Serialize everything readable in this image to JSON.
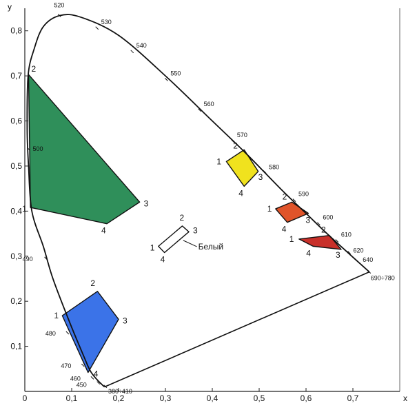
{
  "chart_data": {
    "type": "diagram",
    "xlabel": "x",
    "ylabel": "y",
    "xlim": [
      0,
      0.8
    ],
    "ylim": [
      0,
      0.85
    ],
    "x_ticks": [
      {
        "v": 0,
        "label": "0"
      },
      {
        "v": 0.1,
        "label": "0,1"
      },
      {
        "v": 0.2,
        "label": "0,2"
      },
      {
        "v": 0.3,
        "label": "0,3"
      },
      {
        "v": 0.4,
        "label": "0,4"
      },
      {
        "v": 0.5,
        "label": "0,5"
      },
      {
        "v": 0.6,
        "label": "0,6"
      },
      {
        "v": 0.7,
        "label": "0,7"
      }
    ],
    "y_ticks": [
      {
        "v": 0.1,
        "label": "0,1"
      },
      {
        "v": 0.2,
        "label": "0,2"
      },
      {
        "v": 0.3,
        "label": "0,3"
      },
      {
        "v": 0.4,
        "label": "0,4"
      },
      {
        "v": 0.5,
        "label": "0,5"
      },
      {
        "v": 0.6,
        "label": "0,6"
      },
      {
        "v": 0.7,
        "label": "0,7"
      },
      {
        "v": 0.8,
        "label": "0,8"
      }
    ],
    "locus": [
      [
        0.17,
        0.01
      ],
      [
        0.155,
        0.025
      ],
      [
        0.14,
        0.045
      ],
      [
        0.125,
        0.08
      ],
      [
        0.095,
        0.155
      ],
      [
        0.06,
        0.25
      ],
      [
        0.04,
        0.32
      ],
      [
        0.015,
        0.4
      ],
      [
        0.008,
        0.5
      ],
      [
        0.005,
        0.58
      ],
      [
        0.007,
        0.7
      ],
      [
        0.02,
        0.76
      ],
      [
        0.04,
        0.81
      ],
      [
        0.075,
        0.834
      ],
      [
        0.12,
        0.83
      ],
      [
        0.2,
        0.79
      ],
      [
        0.3,
        0.7
      ],
      [
        0.4,
        0.6
      ],
      [
        0.47,
        0.53
      ],
      [
        0.55,
        0.445
      ],
      [
        0.6,
        0.395
      ],
      [
        0.65,
        0.345
      ],
      [
        0.735,
        0.265
      ]
    ],
    "purple_line": [
      [
        0.735,
        0.265
      ],
      [
        0.17,
        0.01
      ]
    ],
    "wavelengths": [
      {
        "label": "520",
        "x": 0.074,
        "y": 0.834,
        "dx": -8,
        "dy": -12
      },
      {
        "label": "530",
        "x": 0.154,
        "y": 0.806,
        "dx": 6,
        "dy": -6
      },
      {
        "label": "540",
        "x": 0.229,
        "y": 0.754,
        "dx": 6,
        "dy": -6
      },
      {
        "label": "550",
        "x": 0.302,
        "y": 0.692,
        "dx": 6,
        "dy": -6
      },
      {
        "label": "560",
        "x": 0.373,
        "y": 0.624,
        "dx": 6,
        "dy": -6
      },
      {
        "label": "570",
        "x": 0.444,
        "y": 0.555,
        "dx": 6,
        "dy": -6
      },
      {
        "label": "580",
        "x": 0.512,
        "y": 0.487,
        "dx": 6,
        "dy": -4
      },
      {
        "label": "590",
        "x": 0.575,
        "y": 0.424,
        "dx": 6,
        "dy": -6
      },
      {
        "label": "600",
        "x": 0.627,
        "y": 0.372,
        "dx": 6,
        "dy": -6
      },
      {
        "label": "610",
        "x": 0.666,
        "y": 0.334,
        "dx": 6,
        "dy": -6
      },
      {
        "label": "620",
        "x": 0.692,
        "y": 0.308,
        "dx": 6,
        "dy": 0
      },
      {
        "label": "640",
        "x": 0.718,
        "y": 0.281,
        "dx": 2,
        "dy": -4
      },
      {
        "label": "690÷780",
        "x": 0.735,
        "y": 0.265,
        "dx": 2,
        "dy": 12
      },
      {
        "label": "500",
        "x": 0.008,
        "y": 0.538,
        "dx": 6,
        "dy": 3
      },
      {
        "label": "490",
        "x": 0.045,
        "y": 0.295,
        "dx": -34,
        "dy": 4
      },
      {
        "label": "480",
        "x": 0.091,
        "y": 0.13,
        "dx": -32,
        "dy": 4
      },
      {
        "label": "470",
        "x": 0.124,
        "y": 0.058,
        "dx": -32,
        "dy": 4
      },
      {
        "label": "460",
        "x": 0.144,
        "y": 0.03,
        "dx": -32,
        "dy": 4
      },
      {
        "label": "450",
        "x": 0.157,
        "y": 0.019,
        "dx": -32,
        "dy": 6
      },
      {
        "label": "380÷410",
        "x": 0.172,
        "y": 0.011,
        "dx": 4,
        "dy": 10
      }
    ],
    "regions": [
      {
        "name": "green",
        "color": "#2f8f5a",
        "points": [
          [
            0.008,
            0.703
          ],
          [
            0.245,
            0.42
          ],
          [
            0.175,
            0.372
          ],
          [
            0.012,
            0.408
          ]
        ],
        "labels": [
          "2",
          "3",
          "4",
          "1"
        ],
        "label_offsets": [
          [
            4,
            -4
          ],
          [
            6,
            6
          ],
          [
            -8,
            14
          ],
          [
            -12,
            6
          ]
        ]
      },
      {
        "name": "blue",
        "color": "#3b73e8",
        "points": [
          [
            0.08,
            0.168
          ],
          [
            0.155,
            0.222
          ],
          [
            0.2,
            0.16
          ],
          [
            0.135,
            0.042
          ]
        ],
        "labels": [
          "1",
          "2",
          "3",
          "4"
        ],
        "label_offsets": [
          [
            -12,
            4
          ],
          [
            -10,
            -8
          ],
          [
            6,
            6
          ],
          [
            8,
            6
          ]
        ]
      },
      {
        "name": "white",
        "color": "#ffffff",
        "points": [
          [
            0.285,
            0.322
          ],
          [
            0.336,
            0.367
          ],
          [
            0.35,
            0.354
          ],
          [
            0.298,
            0.308
          ]
        ],
        "labels": [
          "1",
          "2",
          "3",
          "4"
        ],
        "label_offsets": [
          [
            -12,
            6
          ],
          [
            -4,
            -8
          ],
          [
            6,
            2
          ],
          [
            -6,
            14
          ]
        ]
      },
      {
        "name": "yellow",
        "color": "#f0e21e",
        "points": [
          [
            0.43,
            0.51
          ],
          [
            0.468,
            0.536
          ],
          [
            0.498,
            0.488
          ],
          [
            0.468,
            0.455
          ]
        ],
        "labels": [
          "1",
          "2",
          "3",
          "4"
        ],
        "label_offsets": [
          [
            -14,
            4
          ],
          [
            -16,
            -2
          ],
          [
            0,
            12
          ],
          [
            -8,
            14
          ]
        ]
      },
      {
        "name": "orange",
        "color": "#e0542a",
        "points": [
          [
            0.535,
            0.405
          ],
          [
            0.57,
            0.42
          ],
          [
            0.605,
            0.395
          ],
          [
            0.56,
            0.375
          ]
        ],
        "labels": [
          "1",
          "2",
          "3",
          "4"
        ],
        "label_offsets": [
          [
            -12,
            4
          ],
          [
            -14,
            -4
          ],
          [
            -4,
            14
          ],
          [
            -8,
            14
          ]
        ]
      },
      {
        "name": "red",
        "color": "#c8302a",
        "points": [
          [
            0.585,
            0.338
          ],
          [
            0.65,
            0.346
          ],
          [
            0.675,
            0.315
          ],
          [
            0.615,
            0.322
          ]
        ],
        "labels": [
          "1",
          "2",
          "3",
          "4"
        ],
        "label_offsets": [
          [
            -14,
            4
          ],
          [
            -12,
            -4
          ],
          [
            -8,
            12
          ],
          [
            -10,
            14
          ]
        ]
      }
    ],
    "annotations": [
      {
        "text": "Белый",
        "x": 0.37,
        "y": 0.315,
        "from": [
          0.338,
          0.335
        ]
      }
    ]
  }
}
